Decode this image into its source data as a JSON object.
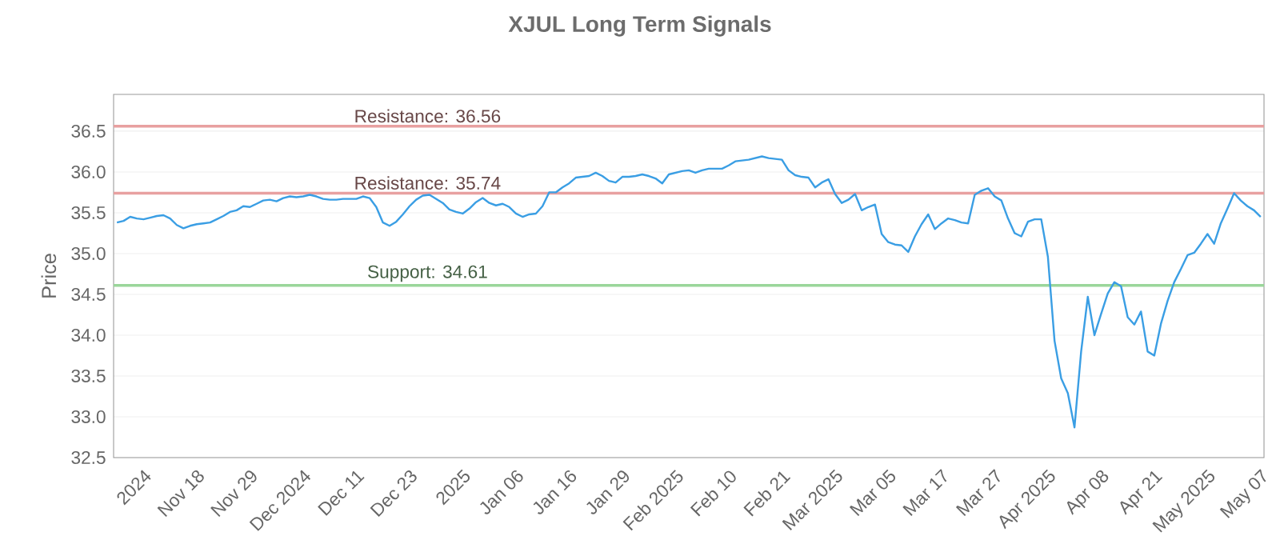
{
  "chart_data": {
    "type": "line",
    "title": "XJUL Long Term Signals",
    "ylabel": "Price",
    "categories": [
      null,
      null,
      null,
      null,
      "2024",
      null,
      null,
      null,
      null,
      null,
      null,
      null,
      "Nov 18",
      null,
      null,
      null,
      null,
      null,
      null,
      null,
      "Nov 29",
      null,
      null,
      null,
      null,
      null,
      null,
      null,
      "Dec 2024",
      null,
      null,
      null,
      null,
      null,
      null,
      null,
      "Dec 11",
      null,
      null,
      null,
      null,
      null,
      null,
      null,
      "Dec 23",
      null,
      null,
      null,
      null,
      null,
      null,
      null,
      "2025",
      null,
      null,
      null,
      null,
      null,
      null,
      null,
      "Jan 06",
      null,
      null,
      null,
      null,
      null,
      null,
      null,
      "Jan 16",
      null,
      null,
      null,
      null,
      null,
      null,
      null,
      "Jan 29",
      null,
      null,
      null,
      null,
      null,
      null,
      null,
      "Feb 2025",
      null,
      null,
      null,
      null,
      null,
      null,
      null,
      "Feb 10",
      null,
      null,
      null,
      null,
      null,
      null,
      null,
      "Feb 21",
      null,
      null,
      null,
      null,
      null,
      null,
      null,
      "Mar 2025",
      null,
      null,
      null,
      null,
      null,
      null,
      null,
      "Mar 05",
      null,
      null,
      null,
      null,
      null,
      null,
      null,
      "Mar 17",
      null,
      null,
      null,
      null,
      null,
      null,
      null,
      "Mar 27",
      null,
      null,
      null,
      null,
      null,
      null,
      null,
      "Apr 2025",
      null,
      null,
      null,
      null,
      null,
      null,
      null,
      "Apr 08",
      null,
      null,
      null,
      null,
      null,
      null,
      null,
      "Apr 21",
      null,
      null,
      null,
      null,
      null,
      null,
      null,
      "May 2025",
      null,
      null,
      null,
      null,
      null,
      null,
      null,
      "May 07"
    ],
    "series": [
      {
        "color": "#3a9ee4",
        "values": [
          35.38,
          35.4,
          35.45,
          35.43,
          35.42,
          35.44,
          35.46,
          35.47,
          35.43,
          35.35,
          35.31,
          35.34,
          35.36,
          35.37,
          35.38,
          35.42,
          35.46,
          35.51,
          35.53,
          35.58,
          35.57,
          35.61,
          35.65,
          35.66,
          35.64,
          35.68,
          35.7,
          35.69,
          35.7,
          35.72,
          35.7,
          35.67,
          35.66,
          35.66,
          35.67,
          35.67,
          35.67,
          35.7,
          35.68,
          35.57,
          35.38,
          35.34,
          35.39,
          35.48,
          35.58,
          35.66,
          35.71,
          35.72,
          35.67,
          35.62,
          35.54,
          35.51,
          35.49,
          35.55,
          35.63,
          35.68,
          35.62,
          35.59,
          35.61,
          35.57,
          35.49,
          35.45,
          35.48,
          35.49,
          35.58,
          35.75,
          35.75,
          35.81,
          35.86,
          35.93,
          35.94,
          35.95,
          35.99,
          35.95,
          35.89,
          35.87,
          35.94,
          35.94,
          35.95,
          35.97,
          35.95,
          35.92,
          35.86,
          35.97,
          35.99,
          36.01,
          36.02,
          35.99,
          36.02,
          36.04,
          36.04,
          36.04,
          36.08,
          36.13,
          36.14,
          36.15,
          36.17,
          36.19,
          36.17,
          36.16,
          36.15,
          36.02,
          35.96,
          35.94,
          35.93,
          35.81,
          35.87,
          35.91,
          35.73,
          35.62,
          35.66,
          35.73,
          35.53,
          35.57,
          35.6,
          35.24,
          35.14,
          35.11,
          35.1,
          35.02,
          35.21,
          35.36,
          35.48,
          35.3,
          35.37,
          35.43,
          35.41,
          35.38,
          35.37,
          35.72,
          35.77,
          35.8,
          35.7,
          35.65,
          35.43,
          35.25,
          35.21,
          35.39,
          35.42,
          35.42,
          34.96,
          33.93,
          33.47,
          33.29,
          32.87,
          33.8,
          34.47,
          34.0,
          34.26,
          34.51,
          34.65,
          34.6,
          34.22,
          34.13,
          34.29,
          33.8,
          33.75,
          34.14,
          34.42,
          34.65,
          34.81,
          34.98,
          35.01,
          35.12,
          35.24,
          35.12,
          35.37,
          35.55,
          35.74,
          35.65,
          35.58,
          35.53,
          35.45
        ]
      }
    ],
    "ylim": [
      32.5,
      36.95
    ],
    "yticks": [
      32.5,
      {
        "value": 33,
        "label": "33.0"
      },
      33.5,
      {
        "value": 34,
        "label": "34.0"
      },
      34.5,
      {
        "value": 35,
        "label": "35.0"
      },
      35.5,
      {
        "value": 36,
        "label": "36.0"
      },
      36.5
    ],
    "grid": "y",
    "ref_lines": [
      {
        "axis": "y",
        "value": 36.56,
        "label": "Resistance: 36.56",
        "color": "#e8a0a0"
      },
      {
        "axis": "y",
        "value": 35.74,
        "label": "Resistance: 35.74",
        "color": "#e8a0a0"
      },
      {
        "axis": "y",
        "value": 34.61,
        "label": "Support: 34.61",
        "color": "#9ad69a"
      }
    ]
  }
}
